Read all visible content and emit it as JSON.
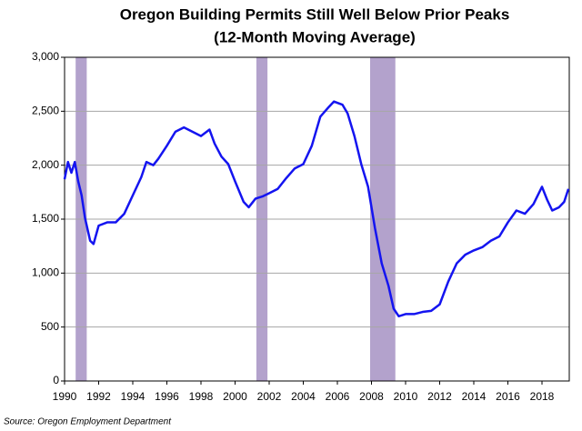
{
  "chart_data": {
    "type": "line",
    "title": "Oregon Building Permits Still Well Below Prior Peaks",
    "subtitle": "(12-Month Moving Average)",
    "source": "Source: Oregon Employment Department",
    "color": "#1414f0",
    "recession_color": "#b3a2cc",
    "grid": true,
    "xlim": [
      1990,
      2019.6
    ],
    "ylim": [
      0,
      3000
    ],
    "xticks": [
      1990,
      1992,
      1994,
      1996,
      1998,
      2000,
      2002,
      2004,
      2006,
      2008,
      2010,
      2012,
      2014,
      2016,
      2018
    ],
    "yticks": [
      0,
      500,
      {
        "value": 1000,
        "label": "1,000"
      },
      {
        "value": 1500,
        "label": "1,500"
      },
      {
        "value": 2000,
        "label": "2,000"
      },
      {
        "value": 2500,
        "label": "2,500"
      },
      {
        "value": 3000,
        "label": "3,000"
      }
    ],
    "recessions": [
      [
        1990.65,
        1991.3
      ],
      [
        2001.25,
        2001.9
      ],
      [
        2007.92,
        2009.4
      ]
    ],
    "x": [
      1990.0,
      1990.2,
      1990.4,
      1990.6,
      1990.8,
      1991.0,
      1991.2,
      1991.5,
      1991.7,
      1992.0,
      1992.5,
      1993.0,
      1993.5,
      1994.0,
      1994.5,
      1994.8,
      1995.2,
      1995.5,
      1996.0,
      1996.5,
      1997.0,
      1997.5,
      1998.0,
      1998.5,
      1998.8,
      1999.2,
      1999.6,
      2000.0,
      2000.5,
      2000.8,
      2001.2,
      2001.6,
      2002.0,
      2002.5,
      2003.0,
      2003.5,
      2004.0,
      2004.5,
      2005.0,
      2005.5,
      2005.8,
      2006.3,
      2006.6,
      2007.0,
      2007.4,
      2007.8,
      2008.2,
      2008.6,
      2009.0,
      2009.3,
      2009.6,
      2010.0,
      2010.5,
      2011.0,
      2011.5,
      2012.0,
      2012.5,
      2013.0,
      2013.5,
      2014.0,
      2014.5,
      2015.0,
      2015.5,
      2016.0,
      2016.5,
      2017.0,
      2017.5,
      2018.0,
      2018.3,
      2018.6,
      2019.0,
      2019.3,
      2019.55
    ],
    "values": [
      1870,
      2030,
      1930,
      2030,
      1850,
      1720,
      1510,
      1300,
      1270,
      1440,
      1470,
      1470,
      1550,
      1720,
      1890,
      2030,
      2000,
      2060,
      2180,
      2310,
      2350,
      2310,
      2270,
      2330,
      2200,
      2080,
      2010,
      1850,
      1660,
      1610,
      1690,
      1710,
      1740,
      1780,
      1880,
      1970,
      2010,
      2180,
      2450,
      2540,
      2590,
      2560,
      2480,
      2270,
      2010,
      1800,
      1420,
      1090,
      880,
      670,
      600,
      620,
      620,
      640,
      650,
      710,
      920,
      1090,
      1170,
      1210,
      1240,
      1300,
      1340,
      1470,
      1580,
      1550,
      1640,
      1800,
      1680,
      1580,
      1610,
      1660,
      1780
    ]
  }
}
